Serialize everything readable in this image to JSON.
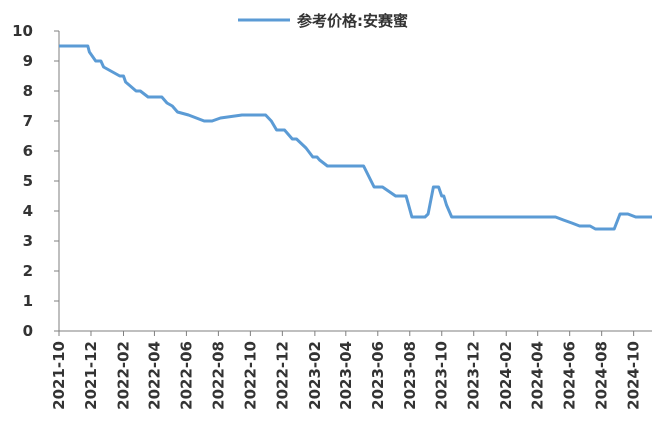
{
  "chart_data": {
    "type": "line",
    "title": "",
    "xlabel": "",
    "ylabel": "",
    "ylim": [
      0,
      10
    ],
    "yticks": [
      0,
      1,
      2,
      3,
      4,
      5,
      6,
      7,
      8,
      9,
      10
    ],
    "xticks": [
      "2021-10",
      "2021-12",
      "2022-02",
      "2022-04",
      "2022-06",
      "2022-08",
      "2022-10",
      "2022-12",
      "2023-02",
      "2023-04",
      "2023-06",
      "2023-08",
      "2023-10",
      "2023-12",
      "2024-02",
      "2024-04",
      "2024-06",
      "2024-08",
      "2024-10"
    ],
    "grid": false,
    "legend": "top-center",
    "colors": {
      "line": "#5b9bd5",
      "axis": "#7f7f7f",
      "text": "#333333"
    },
    "series": [
      {
        "name": "参考价格:安赛蜜",
        "x": [
          "2021-10-01",
          "2021-11-25",
          "2021-11-28",
          "2021-12-10",
          "2021-12-20",
          "2021-12-25",
          "2022-01-25",
          "2022-02-01",
          "2022-02-05",
          "2022-02-25",
          "2022-03-05",
          "2022-03-20",
          "2022-04-05",
          "2022-04-15",
          "2022-04-25",
          "2022-05-05",
          "2022-05-15",
          "2022-06-05",
          "2022-07-05",
          "2022-07-10",
          "2022-07-20",
          "2022-08-05",
          "2022-09-15",
          "2022-10-20",
          "2022-10-30",
          "2022-11-10",
          "2022-11-20",
          "2022-12-05",
          "2022-12-20",
          "2022-12-28",
          "2023-01-15",
          "2023-01-28",
          "2023-02-05",
          "2023-02-10",
          "2023-02-25",
          "2023-03-10",
          "2023-03-25",
          "2023-04-15",
          "2023-05-05",
          "2023-05-25",
          "2023-06-10",
          "2023-07-05",
          "2023-07-25",
          "2023-08-05",
          "2023-08-25",
          "2023-08-30",
          "2023-09-05",
          "2023-09-15",
          "2023-09-25",
          "2023-10-01",
          "2023-10-05",
          "2023-10-10",
          "2023-10-20",
          "2023-11-20",
          "2024-01-10",
          "2024-03-10",
          "2024-05-05",
          "2024-05-20",
          "2024-06-05",
          "2024-06-20",
          "2024-07-10",
          "2024-07-20",
          "2024-08-15",
          "2024-08-25",
          "2024-09-05",
          "2024-09-20",
          "2024-10-05",
          "2024-11-05"
        ],
        "values": [
          9.5,
          9.5,
          9.3,
          9.0,
          9.0,
          8.8,
          8.5,
          8.5,
          8.3,
          8.0,
          8.0,
          7.8,
          7.8,
          7.8,
          7.6,
          7.5,
          7.3,
          7.2,
          7.0,
          7.0,
          7.0,
          7.1,
          7.2,
          7.2,
          7.2,
          7.0,
          6.7,
          6.7,
          6.4,
          6.4,
          6.1,
          5.8,
          5.8,
          5.7,
          5.5,
          5.5,
          5.5,
          5.5,
          5.5,
          4.8,
          4.8,
          4.5,
          4.5,
          3.8,
          3.8,
          3.8,
          3.9,
          4.8,
          4.8,
          4.5,
          4.5,
          4.2,
          3.8,
          3.8,
          3.8,
          3.8,
          3.8,
          3.7,
          3.6,
          3.5,
          3.5,
          3.4,
          3.4,
          3.4,
          3.9,
          3.9,
          3.8,
          3.8
        ]
      }
    ]
  }
}
